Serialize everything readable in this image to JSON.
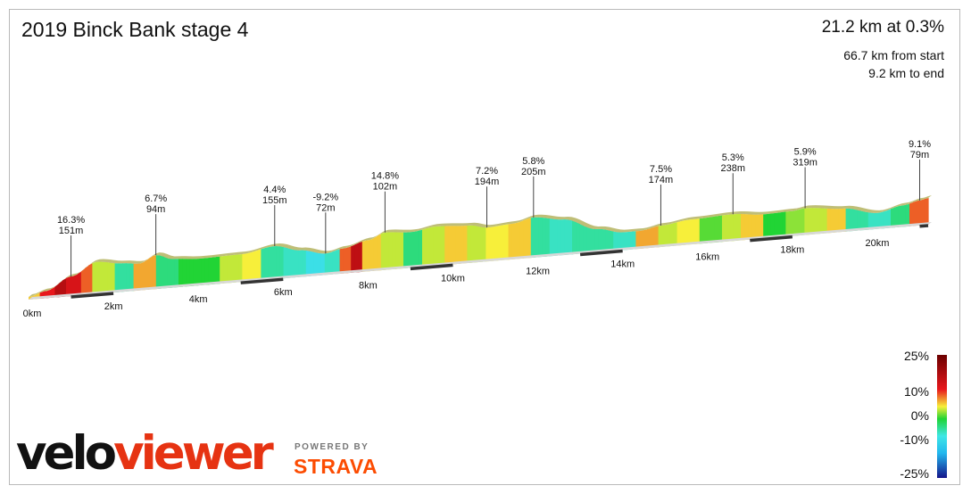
{
  "header": {
    "title": "2019 Binck Bank stage 4",
    "summary": "21.2 km at 0.3%",
    "from_start": "66.7 km from start",
    "to_end": "9.2 km to end"
  },
  "legend": {
    "labels": [
      "25%",
      "10%",
      "0%",
      "-10%",
      "-25%"
    ],
    "colors": [
      "#6b0000",
      "#e8171c",
      "#f7ef3a",
      "#21d435",
      "#3fe6e6",
      "#22b7ee",
      "#15158a"
    ]
  },
  "branding": {
    "logo_velo": "velo",
    "logo_viewer": "viewer",
    "powered_by": "POWERED BY",
    "strava": "STRAVA"
  },
  "chart_data": {
    "type": "area",
    "xlabel": "",
    "ylabel": "",
    "x_ticks": [
      "0km",
      "2km",
      "4km",
      "6km",
      "8km",
      "10km",
      "12km",
      "14km",
      "16km",
      "18km",
      "20km"
    ],
    "x_range_km": [
      0,
      21.2
    ],
    "distance_km": [
      0,
      0.3,
      0.6,
      0.9,
      1.2,
      1.5,
      2.0,
      2.5,
      3.0,
      3.5,
      4.0,
      4.5,
      5.0,
      5.5,
      6.0,
      6.5,
      7.0,
      7.3,
      7.6,
      7.9,
      8.3,
      8.8,
      9.3,
      9.8,
      10.3,
      10.8,
      11.3,
      11.8,
      12.3,
      12.8,
      13.3,
      13.8,
      14.3,
      14.8,
      15.3,
      15.8,
      16.3,
      16.8,
      17.3,
      17.8,
      18.3,
      18.8,
      19.3,
      19.8,
      20.3,
      20.8,
      21.2
    ],
    "gradient_pct": [
      5,
      10,
      16,
      12,
      8,
      3,
      -3,
      6,
      -2,
      0,
      0,
      3,
      4,
      -3,
      -4,
      -6,
      -4,
      8,
      15,
      5,
      3,
      -2,
      3,
      5,
      3,
      4,
      5,
      -3,
      -4,
      -3,
      -3,
      -4,
      6,
      3,
      4,
      1,
      3,
      5,
      0,
      2,
      3,
      5,
      -3,
      -4,
      -2,
      8,
      -1
    ],
    "climbs": [
      {
        "gradient": "16.3%",
        "length": "151m",
        "km": 1.0
      },
      {
        "gradient": "6.7%",
        "length": "94m",
        "km": 3.0
      },
      {
        "gradient": "4.4%",
        "length": "155m",
        "km": 5.8
      },
      {
        "gradient": "-9.2%",
        "length": "72m",
        "km": 7.0
      },
      {
        "gradient": "14.8%",
        "length": "102m",
        "km": 8.4
      },
      {
        "gradient": "7.2%",
        "length": "194m",
        "km": 10.8
      },
      {
        "gradient": "5.8%",
        "length": "205m",
        "km": 11.9
      },
      {
        "gradient": "7.5%",
        "length": "174m",
        "km": 14.9
      },
      {
        "gradient": "5.3%",
        "length": "238m",
        "km": 16.6
      },
      {
        "gradient": "5.9%",
        "length": "319m",
        "km": 18.3
      },
      {
        "gradient": "9.1%",
        "length": "79m",
        "km": 21.0
      }
    ]
  }
}
